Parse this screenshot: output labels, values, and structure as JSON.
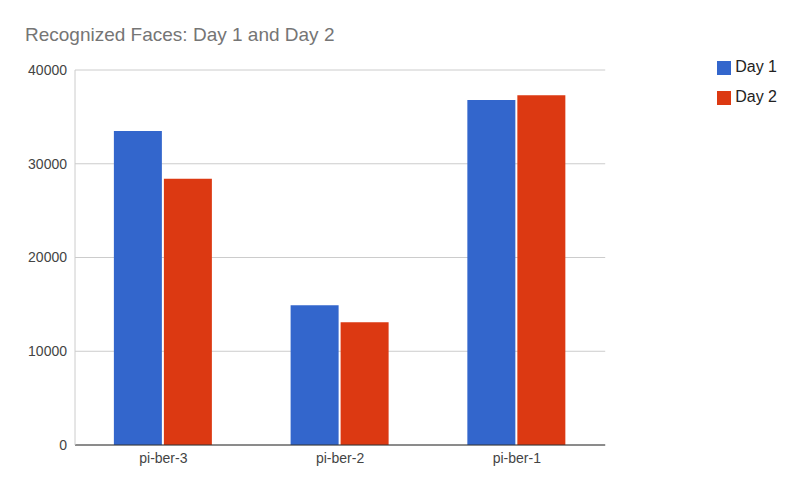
{
  "chart_data": {
    "type": "bar",
    "title": "Recognized Faces: Day 1 and Day 2",
    "categories": [
      "pi-ber-3",
      "pi-ber-2",
      "pi-ber-1"
    ],
    "series": [
      {
        "name": "Day 1",
        "color": "#3366cc",
        "values": [
          33500,
          14900,
          36800
        ]
      },
      {
        "name": "Day 2",
        "color": "#dc3912",
        "values": [
          28400,
          13100,
          37300
        ]
      }
    ],
    "ylim": [
      0,
      40000
    ],
    "yticks": [
      0,
      10000,
      20000,
      30000,
      40000
    ],
    "grid": true,
    "legend": "upper right"
  }
}
